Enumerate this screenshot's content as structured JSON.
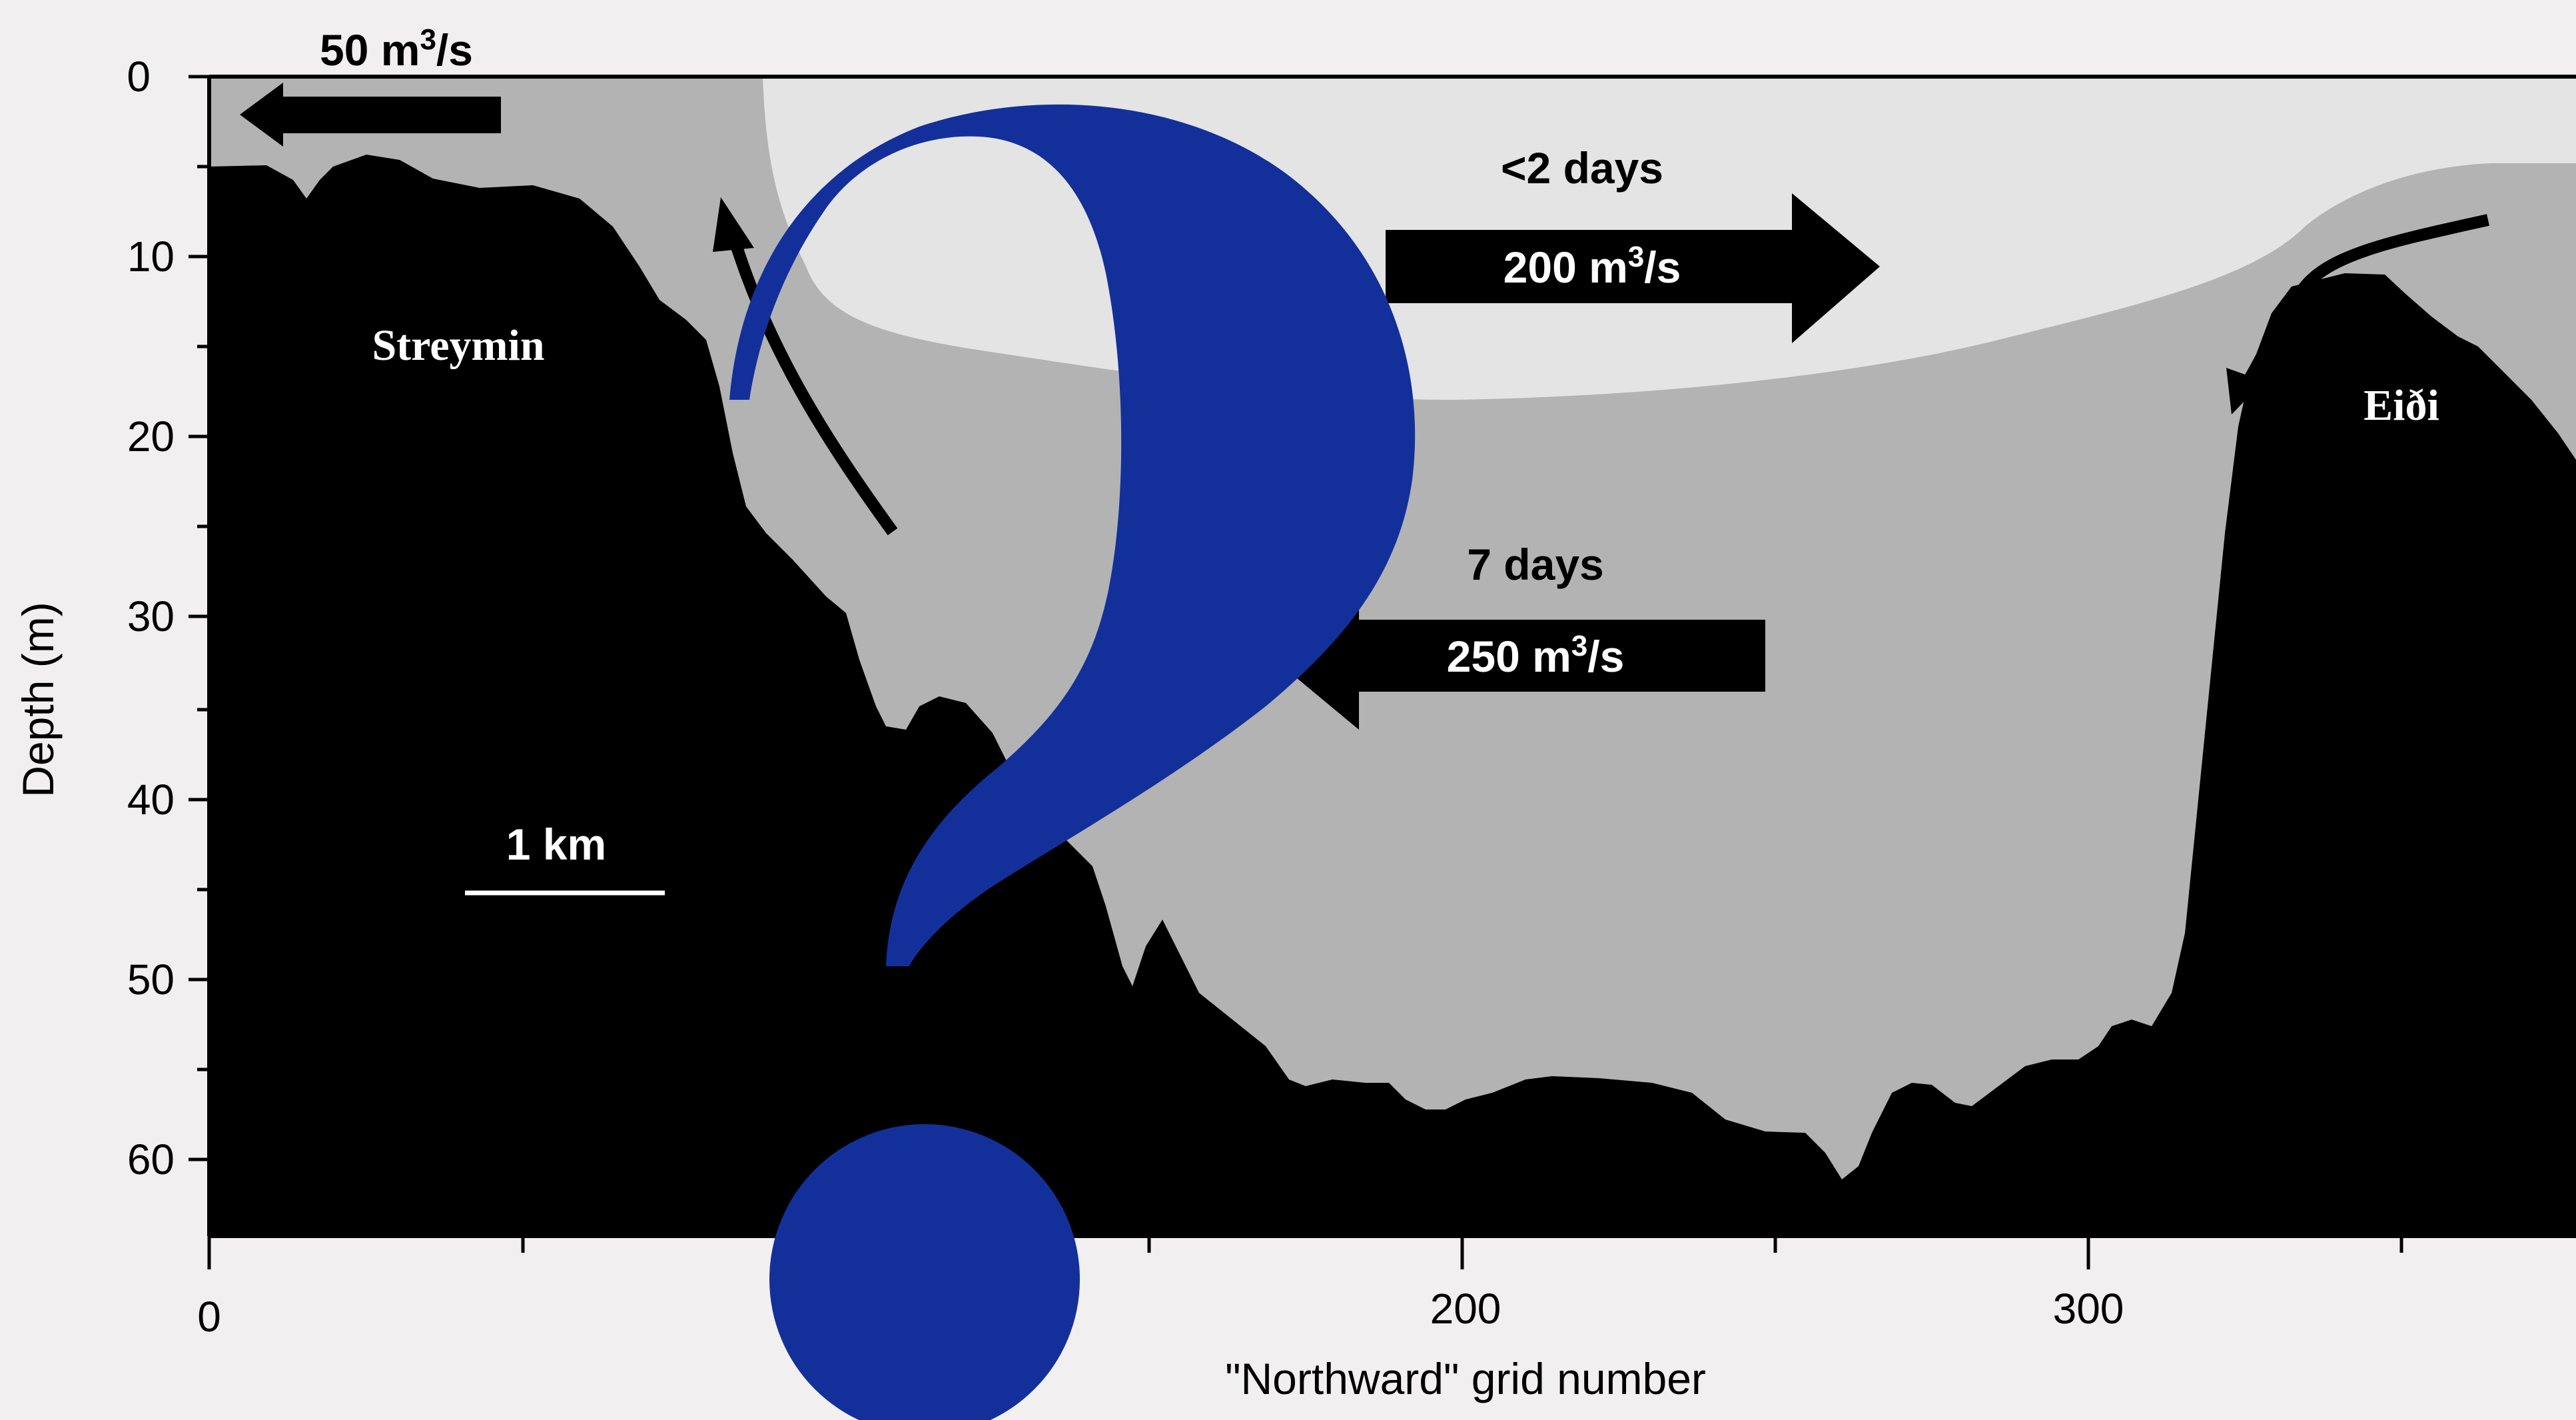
{
  "axes": {
    "xlabel": "\"Northward\" grid number",
    "ylabel": "Depth (m)",
    "xticks": [
      "0",
      "200",
      "300"
    ],
    "yticks": [
      "0",
      "10",
      "20",
      "30",
      "40",
      "50",
      "60"
    ]
  },
  "annotations": {
    "surface_outflow": {
      "value": "50 m",
      "sup": "3",
      "unit": "/s"
    },
    "upper_time": "<2 days",
    "upper_flow": {
      "value": "200 m",
      "sup": "3",
      "unit": "/s"
    },
    "lower_time": "7 days",
    "lower_flow": {
      "value": "250 m",
      "sup": "3",
      "unit": "/s"
    },
    "scale_bar": "1 km"
  },
  "places": {
    "left": "Streymin",
    "right": "Eiði"
  },
  "overlay": {
    "symbol": "question-mark"
  },
  "colors": {
    "background": "#f1eff0",
    "plot_bg": "#ffffff",
    "upper_layer": "#e4e4e4",
    "lower_layer": "#b3b3b3",
    "bathymetry": "#000000",
    "question_mark": "#13309a"
  }
}
